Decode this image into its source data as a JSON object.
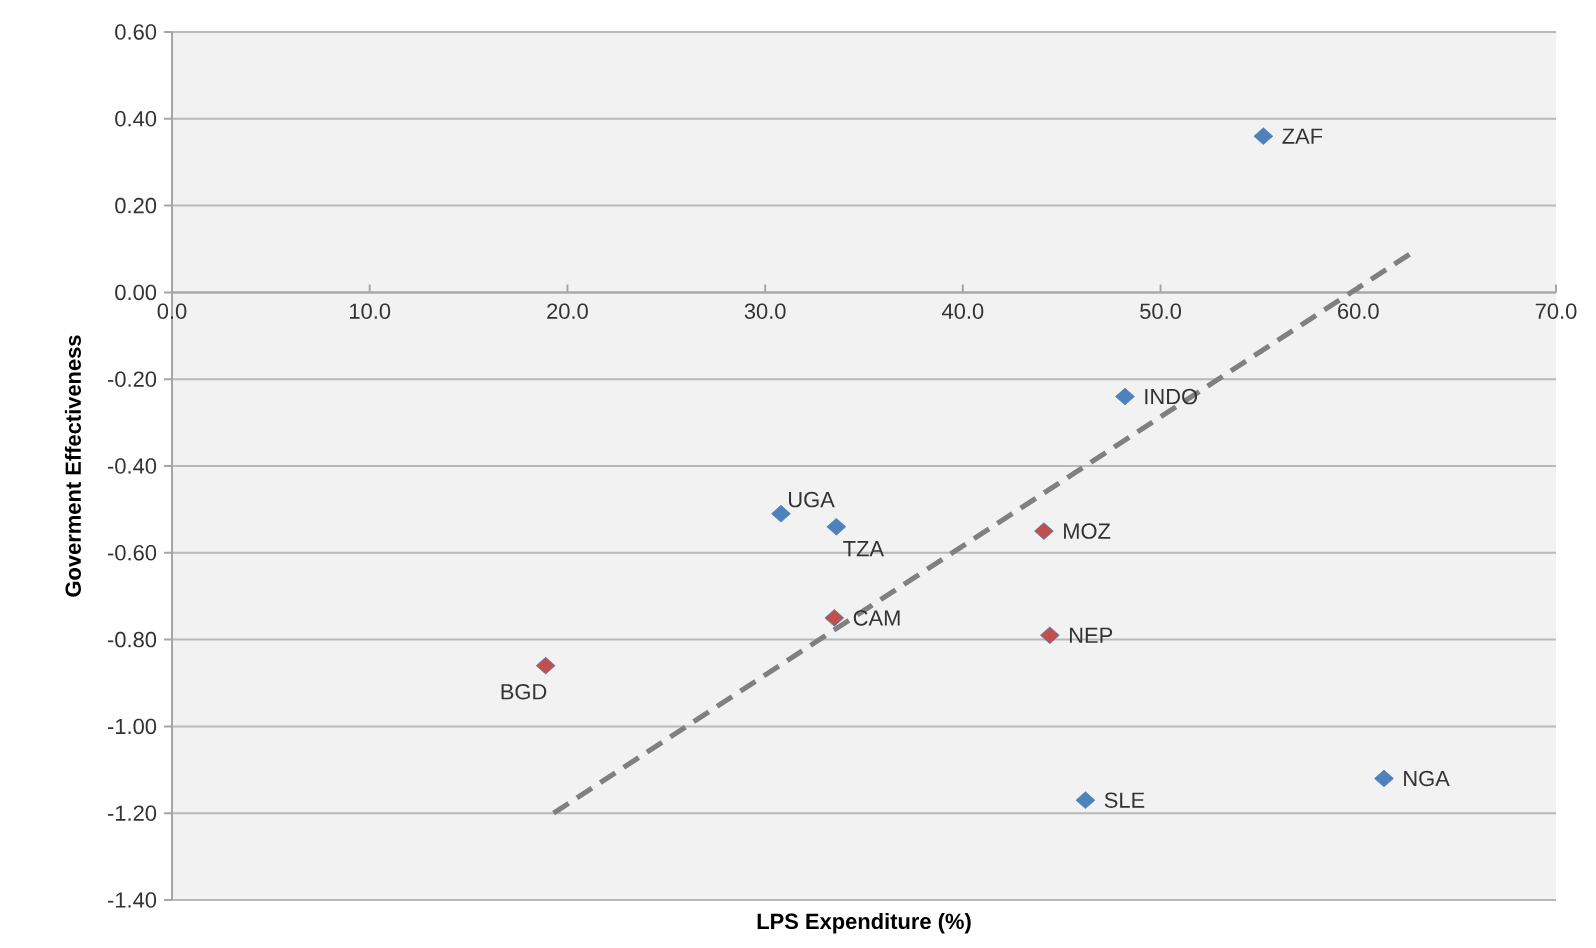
{
  "chart_data": {
    "type": "scatter",
    "xlabel": "LPS Expenditure (%)",
    "ylabel": "Goverment Effectiveness",
    "xlim": [
      0,
      70
    ],
    "ylim": [
      -1.4,
      0.6
    ],
    "xticks": [
      {
        "value": 0,
        "label": "0.0"
      },
      {
        "value": 10,
        "label": "10.0"
      },
      {
        "value": 20,
        "label": "20.0"
      },
      {
        "value": 30,
        "label": "30.0"
      },
      {
        "value": 40,
        "label": "40.0"
      },
      {
        "value": 50,
        "label": "50.0"
      },
      {
        "value": 60,
        "label": "60.0"
      },
      {
        "value": 70,
        "label": "70.0"
      }
    ],
    "yticks": [
      {
        "value": 0.6,
        "label": "0.60"
      },
      {
        "value": 0.4,
        "label": "0.40"
      },
      {
        "value": 0.2,
        "label": "0.20"
      },
      {
        "value": 0,
        "label": "0.00"
      },
      {
        "value": -0.2,
        "label": "-0.20"
      },
      {
        "value": -0.4,
        "label": "-0.40"
      },
      {
        "value": -0.6,
        "label": "-0.60"
      },
      {
        "value": -0.8,
        "label": "-0.80"
      },
      {
        "value": -1.0,
        "label": "-1.00"
      },
      {
        "value": -1.2,
        "label": "-1.20"
      },
      {
        "value": -1.4,
        "label": "-1.40"
      }
    ],
    "grid": "y",
    "marker": "diamond",
    "series": [
      {
        "color": "#4f81bd",
        "x": [
          55.2,
          48.2,
          30.8,
          33.6,
          46.2,
          61.3
        ],
        "values": [
          0.36,
          -0.24,
          -0.51,
          -0.54,
          -1.17,
          -1.12
        ]
      },
      {
        "color": "#c0504d",
        "x": [
          18.9,
          33.5,
          44.1,
          44.4
        ],
        "values": [
          -0.86,
          -0.75,
          -0.55,
          -0.79
        ]
      },
      {
        "type": "line",
        "color": "#808080",
        "line_style": "dashed",
        "marker": "none",
        "x": [
          19.3,
          63.0
        ],
        "values": [
          -1.2,
          0.1
        ]
      }
    ],
    "annotations": [
      {
        "text": "ZAF",
        "x": 55.2,
        "y": 0.36
      },
      {
        "text": "INDO",
        "x": 48.2,
        "y": -0.24
      },
      {
        "text": "UGA",
        "x": 30.8,
        "y": -0.51
      },
      {
        "text": "TZA",
        "x": 33.6,
        "y": -0.54
      },
      {
        "text": "SLE",
        "x": 46.2,
        "y": -1.17
      },
      {
        "text": "NGA",
        "x": 61.3,
        "y": -1.12
      },
      {
        "text": "BGD",
        "x": 18.9,
        "y": -0.86
      },
      {
        "text": "CAM",
        "x": 33.5,
        "y": -0.75
      },
      {
        "text": "MOZ",
        "x": 44.1,
        "y": -0.55
      },
      {
        "text": "NEP",
        "x": 44.4,
        "y": -0.79
      }
    ]
  }
}
